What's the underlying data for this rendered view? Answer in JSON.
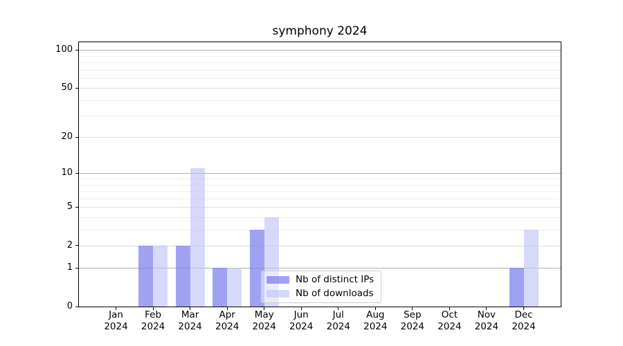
{
  "title": "symphony 2024",
  "chart_data": {
    "type": "bar",
    "title": "symphony 2024",
    "year_label": "2024",
    "categories": [
      "Jan",
      "Feb",
      "Mar",
      "Apr",
      "May",
      "Jun",
      "Jul",
      "Aug",
      "Sep",
      "Oct",
      "Nov",
      "Dec"
    ],
    "series": [
      {
        "name": "Nb of distinct IPs",
        "color": "rgba(124,126,236,0.72)",
        "values": [
          0,
          2,
          2,
          1,
          3,
          0,
          0,
          0,
          0,
          0,
          0,
          1
        ]
      },
      {
        "name": "Nb of downloads",
        "color": "rgba(189,192,246,0.60)",
        "values": [
          0,
          2,
          11,
          1,
          4,
          0,
          0,
          0,
          0,
          0,
          0,
          3
        ]
      }
    ],
    "xlabel": "",
    "ylabel": "",
    "yscale": "log(1+x)",
    "ylim": [
      0,
      115
    ],
    "yticks": [
      0,
      1,
      2,
      5,
      10,
      20,
      50,
      100
    ],
    "minor_yticks": [
      3,
      4,
      6,
      7,
      8,
      9,
      30,
      40,
      60,
      70,
      80,
      90
    ],
    "emphasized_gridlines": [
      1,
      10,
      100
    ],
    "grid": true,
    "legend_position": "lower center"
  },
  "colors": {
    "grid_strong": "#b2b2b2",
    "grid_major": "#dedede",
    "grid_minor": "#eeeeee",
    "spine": "#000000",
    "background": "#ffffff"
  }
}
